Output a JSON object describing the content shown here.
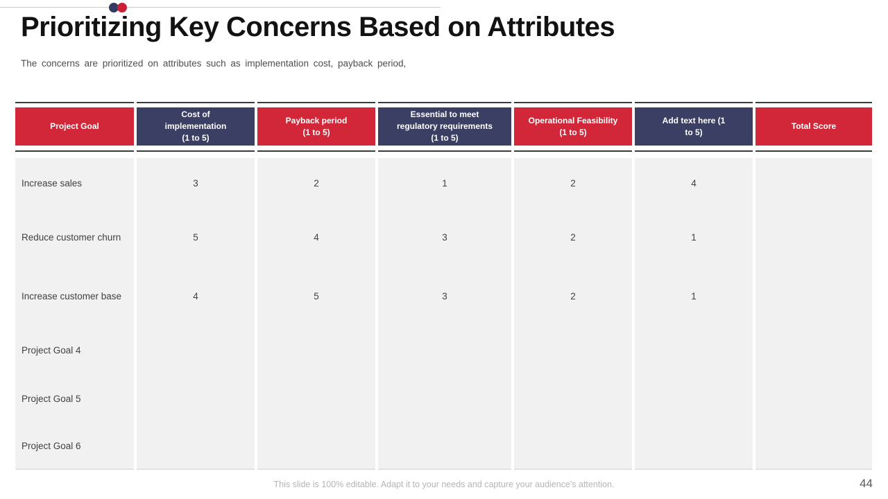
{
  "slide": {
    "title": "Prioritizing Key Concerns Based on Attributes",
    "subtitle": "The concerns are prioritized on attributes such as implementation cost, payback period,",
    "footer_note": "This slide is 100% editable. Adapt it to your needs and capture your audience's attention.",
    "page_number": "44"
  },
  "colors": {
    "red": "#d22639",
    "navy": "#3b3f63",
    "panel_gray": "#f1f1f1",
    "header_line": "#3a3a3a",
    "dot_navy": "#333a63",
    "dot_red": "#cc2036"
  },
  "table": {
    "columns": [
      {
        "label": "Project Goal",
        "style": "red"
      },
      {
        "label": "Cost of\nimplementation\n(1 to 5)",
        "style": "navy"
      },
      {
        "label": "Payback period\n(1 to 5)",
        "style": "red"
      },
      {
        "label": "Essential to meet\nregulatory requirements\n(1 to 5)",
        "style": "navy"
      },
      {
        "label": "Operational Feasibility\n(1 to 5)",
        "style": "red"
      },
      {
        "label": "Add text here (1\nto 5)",
        "style": "navy"
      },
      {
        "label": "Total Score",
        "style": "red"
      }
    ],
    "rows": [
      {
        "goal": "Increase sales",
        "values": [
          "3",
          "2",
          "1",
          "2",
          "4",
          ""
        ]
      },
      {
        "goal": "Reduce customer churn",
        "values": [
          "5",
          "4",
          "3",
          "2",
          "1",
          ""
        ]
      },
      {
        "goal": "Increase customer base",
        "values": [
          "4",
          "5",
          "3",
          "2",
          "1",
          ""
        ]
      },
      {
        "goal": "Project Goal 4",
        "values": [
          "",
          "",
          "",
          "",
          "",
          ""
        ]
      },
      {
        "goal": "Project Goal 5",
        "values": [
          "",
          "",
          "",
          "",
          "",
          ""
        ]
      },
      {
        "goal": "Project Goal 6",
        "values": [
          "",
          "",
          "",
          "",
          "",
          ""
        ]
      }
    ]
  }
}
